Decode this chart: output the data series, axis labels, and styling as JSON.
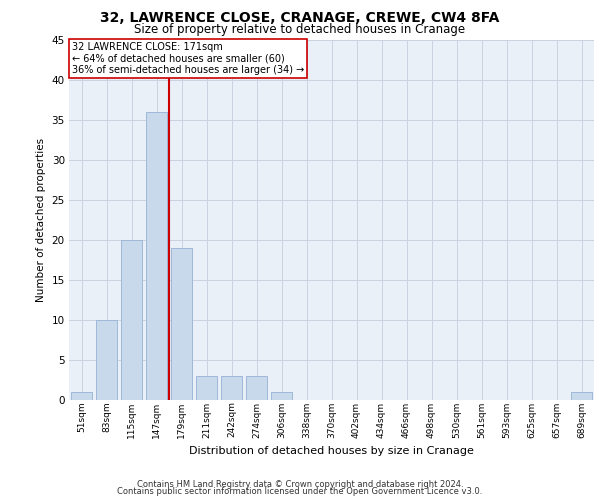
{
  "title1": "32, LAWRENCE CLOSE, CRANAGE, CREWE, CW4 8FA",
  "title2": "Size of property relative to detached houses in Cranage",
  "xlabel": "Distribution of detached houses by size in Cranage",
  "ylabel": "Number of detached properties",
  "bar_labels": [
    "51sqm",
    "83sqm",
    "115sqm",
    "147sqm",
    "179sqm",
    "211sqm",
    "242sqm",
    "274sqm",
    "306sqm",
    "338sqm",
    "370sqm",
    "402sqm",
    "434sqm",
    "466sqm",
    "498sqm",
    "530sqm",
    "561sqm",
    "593sqm",
    "625sqm",
    "657sqm",
    "689sqm"
  ],
  "bar_values": [
    1,
    10,
    20,
    36,
    19,
    3,
    3,
    3,
    1,
    0,
    0,
    0,
    0,
    0,
    0,
    0,
    0,
    0,
    0,
    0,
    1
  ],
  "bar_color": "#c9d9ec",
  "bar_edgecolor": "#a0b8d8",
  "reference_line_label": "32 LAWRENCE CLOSE: 171sqm",
  "annotation_line1": "← 64% of detached houses are smaller (60)",
  "annotation_line2": "36% of semi-detached houses are larger (34) →",
  "vline_color": "#cc0000",
  "ylim": [
    0,
    45
  ],
  "yticks": [
    0,
    5,
    10,
    15,
    20,
    25,
    30,
    35,
    40,
    45
  ],
  "grid_color": "#c8d4e0",
  "background_color": "#eaf0f8",
  "footer1": "Contains HM Land Registry data © Crown copyright and database right 2024.",
  "footer2": "Contains public sector information licensed under the Open Government Licence v3.0."
}
